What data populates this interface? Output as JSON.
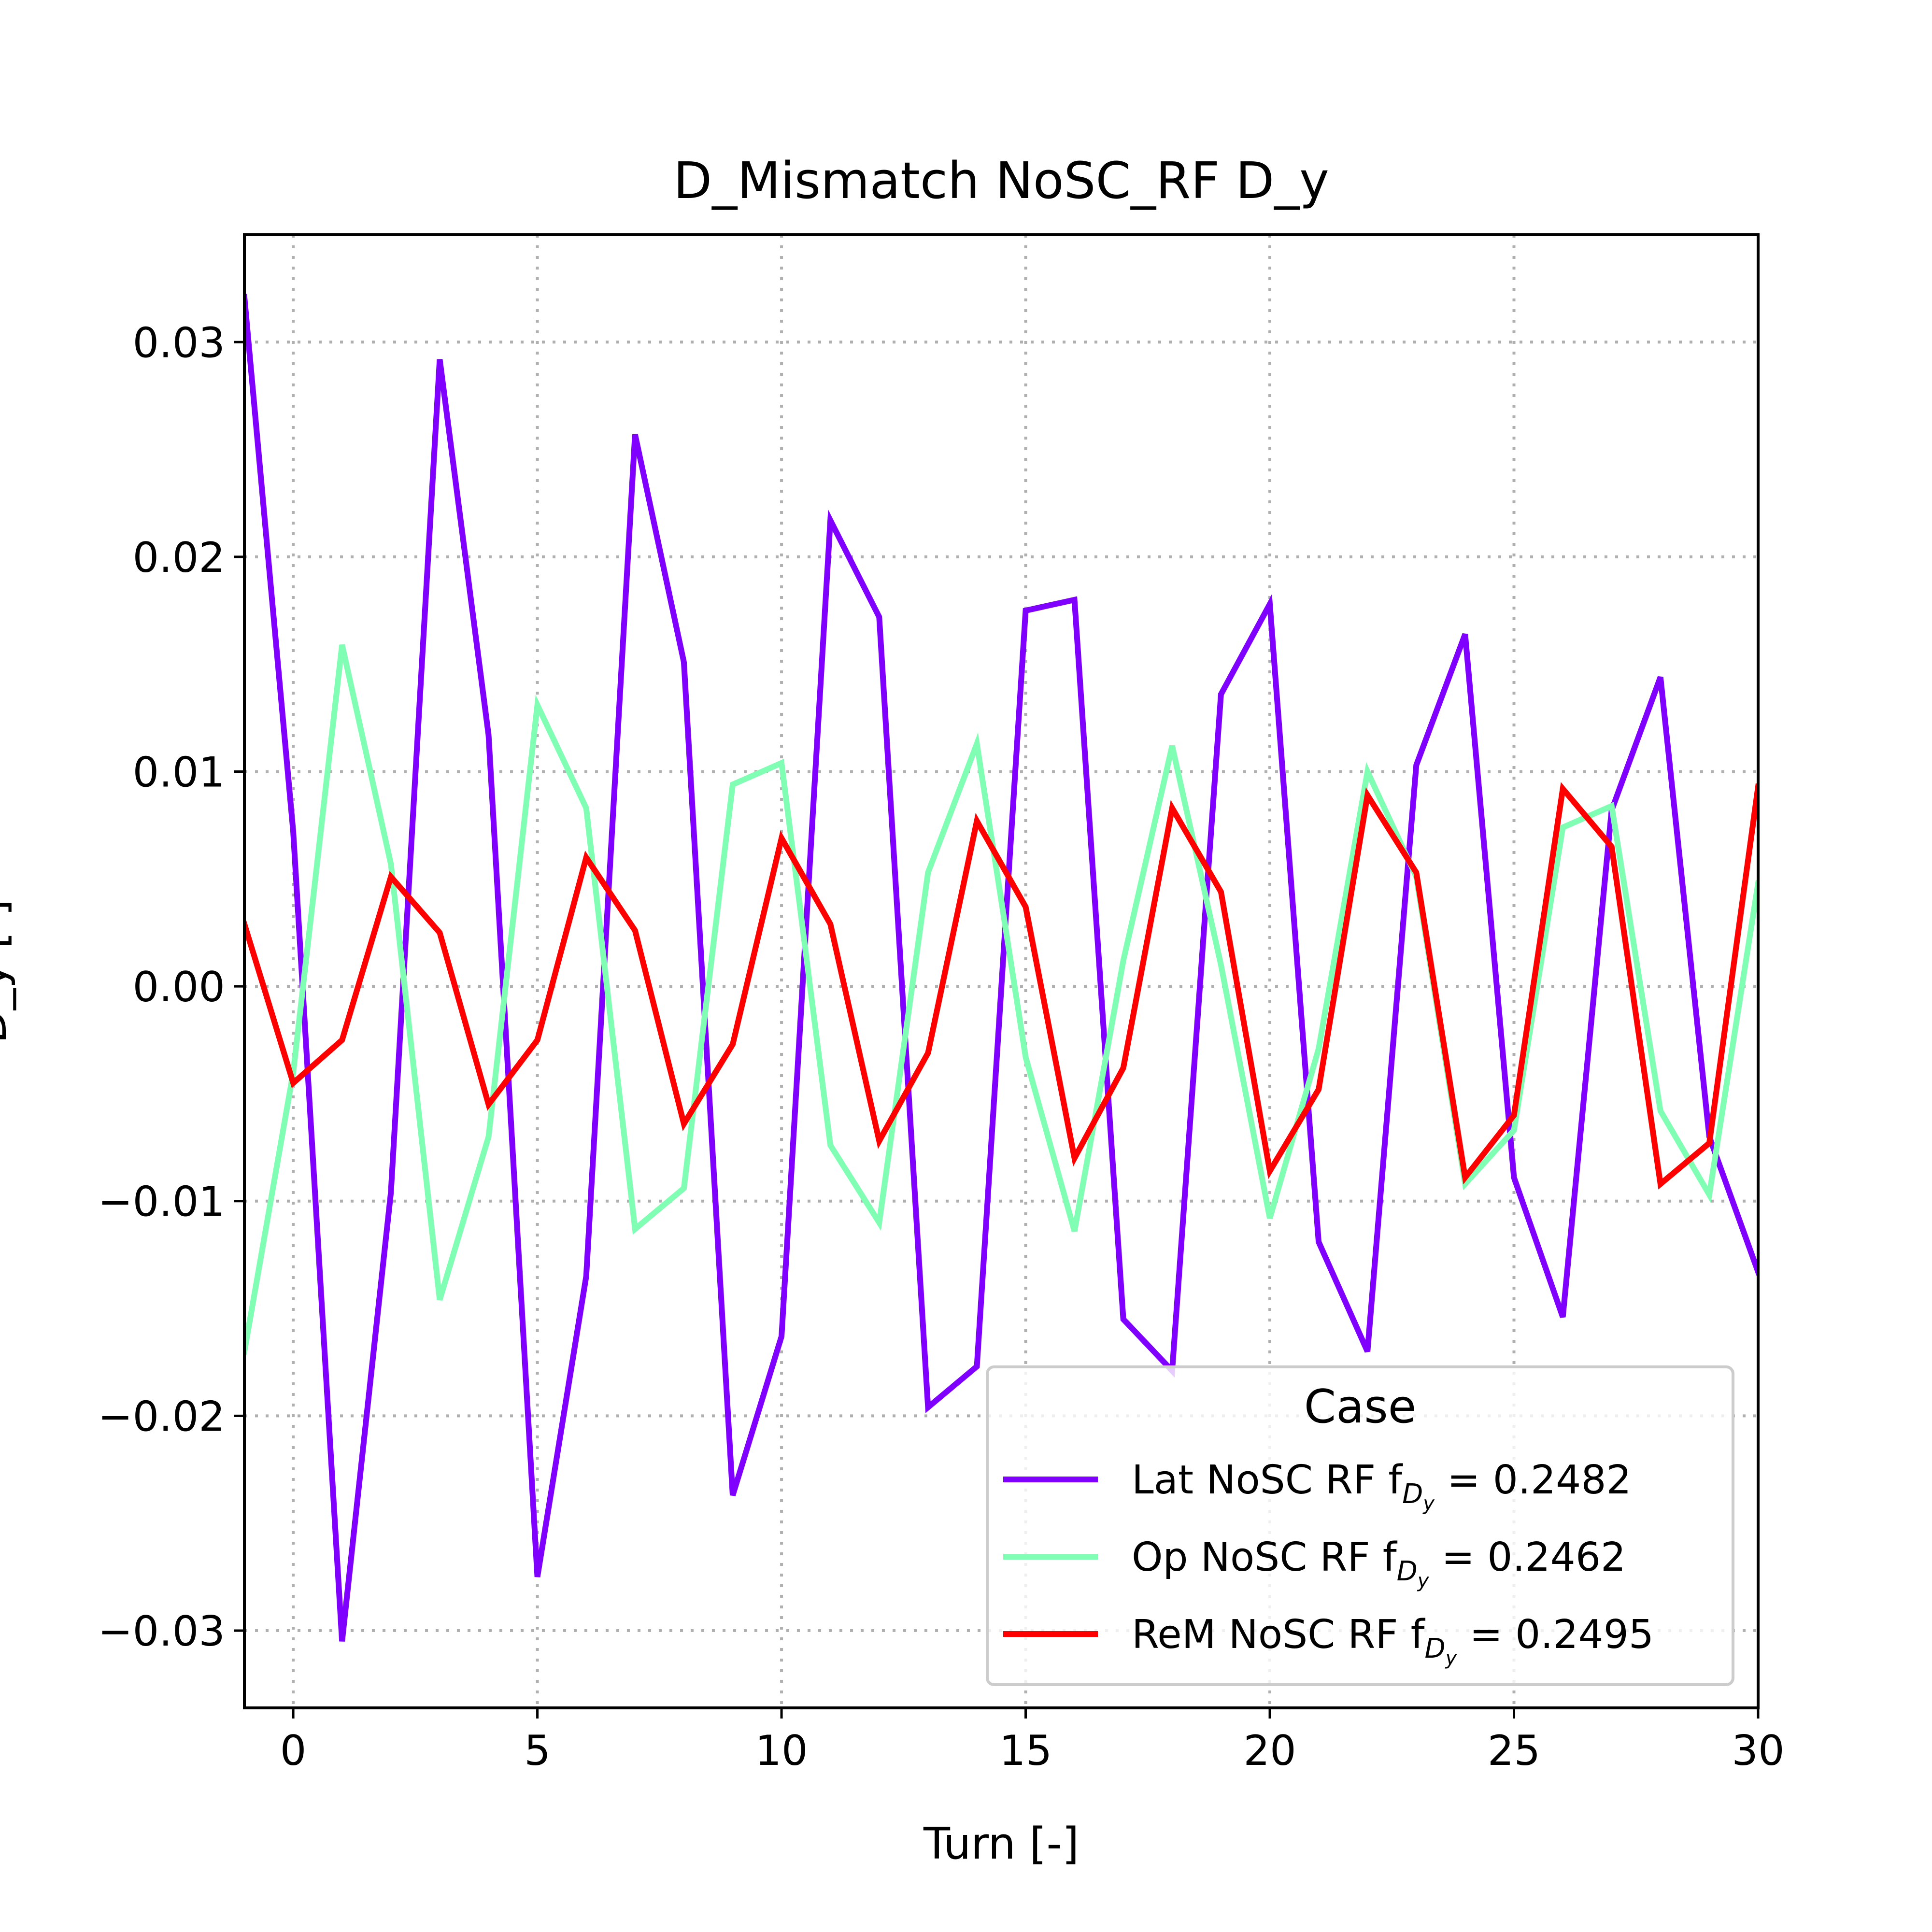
{
  "chart_data": {
    "type": "line",
    "title": "D_Mismatch NoSC_RF D_y",
    "xlabel": "Turn [-]",
    "ylabel": "D_y [-]",
    "xlim": [
      -1,
      30
    ],
    "ylim": [
      -0.0336,
      0.035
    ],
    "xticks": [
      0,
      5,
      10,
      15,
      20,
      25,
      30
    ],
    "xtick_labels": [
      "0",
      "5",
      "10",
      "15",
      "20",
      "25",
      "30"
    ],
    "yticks": [
      -0.03,
      -0.02,
      -0.01,
      0.0,
      0.01,
      0.02,
      0.03
    ],
    "ytick_labels": [
      "−0.03",
      "−0.02",
      "−0.01",
      "0.00",
      "0.01",
      "0.02",
      "0.03"
    ],
    "grid": true,
    "legend": {
      "title": "Case",
      "placement": "lower-right",
      "entries": [
        {
          "prefix": "Lat NoSC RF f",
          "sub_main": "D",
          "sub_sub": "y",
          "suffix": " = 0.2482"
        },
        {
          "prefix": "Op NoSC RF f",
          "sub_main": "D",
          "sub_sub": "y",
          "suffix": " = 0.2462"
        },
        {
          "prefix": "ReM NoSC RF f",
          "sub_main": "D",
          "sub_sub": "y",
          "suffix": " = 0.2495"
        }
      ]
    },
    "x": [
      -1,
      0,
      1,
      2,
      3,
      4,
      5,
      6,
      7,
      8,
      9,
      10,
      11,
      12,
      13,
      14,
      15,
      16,
      17,
      18,
      19,
      20,
      21,
      22,
      23,
      24,
      25,
      26,
      27,
      28,
      29,
      30
    ],
    "series": [
      {
        "name": "Lat NoSC RF f_Dy = 0.2482",
        "color": "#8000ff",
        "values": [
          0.0321,
          0.0072,
          -0.0305,
          -0.0096,
          0.0292,
          0.0117,
          -0.0275,
          -0.0135,
          0.0257,
          0.0151,
          -0.0237,
          -0.0163,
          0.0217,
          0.0172,
          -0.0196,
          -0.0177,
          0.0175,
          0.018,
          -0.0155,
          -0.0179,
          0.0136,
          0.0178,
          -0.0119,
          -0.017,
          0.0103,
          0.0164,
          -0.0089,
          -0.0154,
          0.0082,
          0.0144,
          -0.007,
          -0.0133
        ]
      },
      {
        "name": "Op NoSC RF f_Dy = 0.2462",
        "color": "#80ffb4",
        "values": [
          -0.017,
          -0.004,
          0.0159,
          0.0057,
          -0.0146,
          -0.007,
          0.0131,
          0.0083,
          -0.0113,
          -0.0094,
          0.0094,
          0.0104,
          -0.0074,
          -0.011,
          0.0053,
          0.0113,
          -0.0033,
          -0.0114,
          0.0012,
          0.0112,
          0.001,
          -0.0108,
          -0.0029,
          0.01,
          0.0051,
          -0.0092,
          -0.0067,
          0.0074,
          0.0084,
          -0.0058,
          -0.0097,
          0.0048
        ]
      },
      {
        "name": "ReM NoSC RF f_Dy = 0.2495",
        "color": "#ff0000",
        "values": [
          0.0029,
          -0.0045,
          -0.0025,
          0.0051,
          0.0025,
          -0.0055,
          -0.0025,
          0.006,
          0.0026,
          -0.0064,
          -0.0027,
          0.0069,
          0.0029,
          -0.0072,
          -0.0031,
          0.0077,
          0.0037,
          -0.008,
          -0.0038,
          0.0083,
          0.0044,
          -0.0086,
          -0.0048,
          0.0089,
          0.0053,
          -0.0089,
          -0.006,
          0.0092,
          0.0065,
          -0.0092,
          -0.0073,
          0.0093
        ]
      }
    ]
  }
}
